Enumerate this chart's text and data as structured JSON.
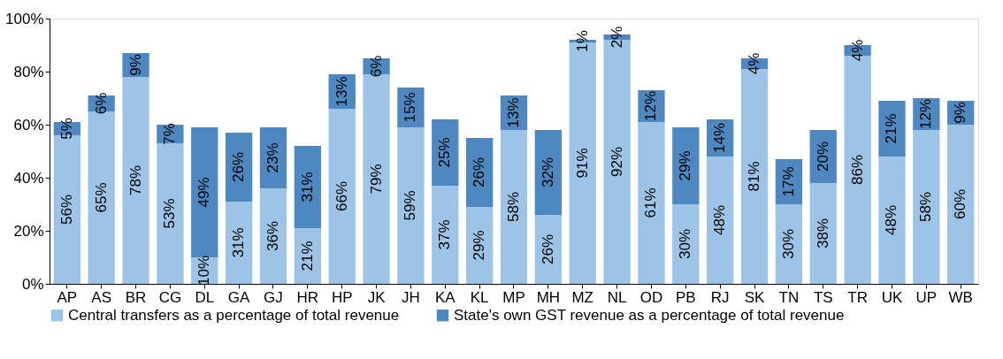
{
  "chart_data": {
    "type": "bar",
    "stacked": true,
    "categories": [
      "AP",
      "AS",
      "BR",
      "CG",
      "DL",
      "GA",
      "GJ",
      "HR",
      "HP",
      "JK",
      "JH",
      "KA",
      "KL",
      "MP",
      "MH",
      "MZ",
      "NL",
      "OD",
      "PB",
      "RJ",
      "SK",
      "TN",
      "TS",
      "TR",
      "UK",
      "UP",
      "WB"
    ],
    "series": [
      {
        "name": "Central transfers as a percentage of total revenue",
        "color": "#9dc3e6",
        "values": [
          56,
          65,
          78,
          53,
          10,
          31,
          36,
          21,
          66,
          79,
          59,
          37,
          29,
          58,
          26,
          91,
          92,
          61,
          30,
          48,
          81,
          30,
          38,
          86,
          48,
          58,
          60
        ],
        "value_labels": [
          "56%",
          "65%",
          "78%",
          "53%",
          "10%",
          "31%",
          "36%",
          "21%",
          "66%",
          "79%",
          "59%",
          "37%",
          "29%",
          "58%",
          "26%",
          "91%",
          "92%",
          "61%",
          "30%",
          "48%",
          "81%",
          "30%",
          "38%",
          "86%",
          "48%",
          "58%",
          "60%"
        ]
      },
      {
        "name": "State's own GST revenue as a percentage of total revenue",
        "color": "#4f88c0",
        "values": [
          5,
          6,
          9,
          7,
          49,
          26,
          23,
          31,
          13,
          6,
          15,
          25,
          26,
          13,
          32,
          1,
          2,
          12,
          29,
          14,
          4,
          17,
          20,
          4,
          21,
          12,
          9
        ],
        "value_labels": [
          "5%",
          "6%",
          "9%",
          "7%",
          "49%",
          "26%",
          "23%",
          "31%",
          "13%",
          "6%",
          "15%",
          "25%",
          "26%",
          "13%",
          "32%",
          "1%",
          "2%",
          "12%",
          "29%",
          "14%",
          "4%",
          "17%",
          "20%",
          "4%",
          "21%",
          "12%",
          "9%"
        ]
      }
    ],
    "ylim": [
      0,
      100
    ],
    "yticks": [
      {
        "value": 0,
        "label": "0%"
      },
      {
        "value": 20,
        "label": "20%"
      },
      {
        "value": 40,
        "label": "40%"
      },
      {
        "value": 60,
        "label": "60%"
      },
      {
        "value": 80,
        "label": "80%"
      },
      {
        "value": 100,
        "label": "100%"
      }
    ],
    "grid": false,
    "legend": "bottom"
  }
}
